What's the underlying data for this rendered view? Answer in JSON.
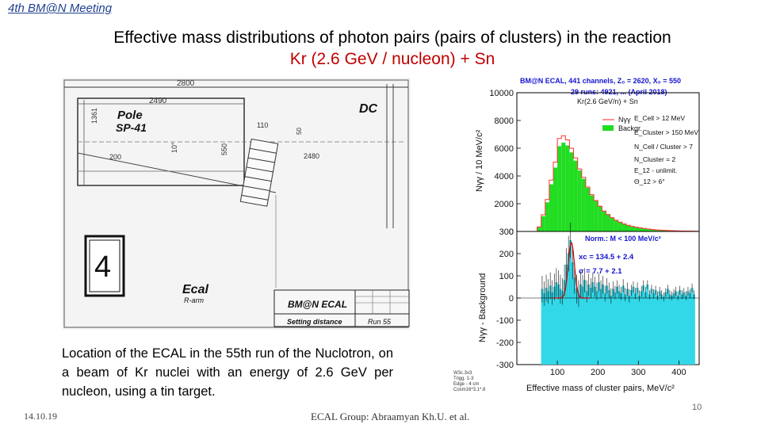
{
  "header": {
    "meeting": "4th BM@N Meeting"
  },
  "slide": {
    "title_line1": "Effective mass distributions of photon pairs (pairs of clusters) in the reaction",
    "title_line2": "Kr (2.6 GeV / nucleon) + Sn",
    "caption": "Location of the ECAL in the 55th run of the Nuclotron, on a beam of Kr nuclei with an energy of 2.6 GeV per nucleon, using a tin target."
  },
  "drawing": {
    "dims": {
      "d2800": "2800",
      "d2490": "2490",
      "d1361": "1361",
      "d110": "110",
      "d50": "50",
      "d10deg": "10°",
      "d550": "550",
      "d200": "200",
      "d2480": "2480"
    },
    "pole_label": "Pole",
    "pole_sub": "SP-41",
    "dc_label": "DC",
    "ecal_label": "Ecal",
    "ecal_sub": "R-arm",
    "frame_number": "4",
    "stamp_title": "BM@N ECAL",
    "stamp_setting": "Setting distance",
    "stamp_run": "Run 55"
  },
  "chart_data": [
    {
      "type": "bar",
      "panel": "top",
      "header_line1": "BM@N ECAL, 441 channels, Z₀ = 2620, X₀ = 550",
      "header_line2": "29 runs: 4921, ... (April 2018)",
      "header_line3": "Kr(2.6 GeV/n) + Sn",
      "ylabel": "Nγγ / 10 MeV/c²",
      "xlim": [
        0,
        450
      ],
      "ylim": [
        0,
        10000
      ],
      "y_ticks": [
        "0",
        "2000",
        "4000",
        "6000",
        "8000",
        "10000"
      ],
      "legend": [
        {
          "name": "Nγγ",
          "color": "#ff4444"
        },
        {
          "name": "Backgr.",
          "color": "#22dd22"
        }
      ],
      "cuts": [
        "E_Cell > 12 MeV",
        "E_Cluster > 150 MeV",
        "N_Cell / Cluster > 7",
        "N_Cluster = 2",
        "E_12 - unlimit.",
        "Θ_12 > 6°"
      ],
      "x": [
        45,
        55,
        65,
        75,
        85,
        95,
        105,
        115,
        125,
        135,
        145,
        155,
        165,
        175,
        185,
        195,
        205,
        215,
        225,
        235,
        245,
        255,
        265,
        275,
        285,
        295,
        305,
        315,
        325,
        335,
        345,
        355,
        365,
        375,
        385,
        395,
        405,
        415,
        425,
        435,
        445
      ],
      "values": [
        0,
        300,
        1100,
        2100,
        3400,
        4600,
        6150,
        6400,
        6200,
        5700,
        5100,
        4400,
        3800,
        3150,
        2600,
        2200,
        1800,
        1450,
        1200,
        980,
        800,
        660,
        540,
        440,
        360,
        300,
        250,
        210,
        170,
        140,
        115,
        95,
        80,
        65,
        55,
        45,
        38,
        30,
        25,
        20,
        15
      ],
      "series": [
        {
          "name": "Nγγ",
          "values": [
            0,
            320,
            1200,
            2300,
            3700,
            5000,
            6700,
            6900,
            6600,
            6000,
            5300,
            4500,
            3900,
            3200,
            2650,
            2230,
            1820,
            1470,
            1220,
            990,
            810,
            670,
            545,
            445,
            365,
            305,
            255,
            212,
            172,
            142,
            117,
            96,
            81,
            66,
            56,
            46,
            39,
            31,
            26,
            21,
            16
          ]
        },
        {
          "name": "Backgr.",
          "values": [
            0,
            300,
            1100,
            2100,
            3400,
            4600,
            6150,
            6400,
            6200,
            5700,
            5100,
            4400,
            3800,
            3150,
            2600,
            2200,
            1800,
            1450,
            1200,
            980,
            800,
            660,
            540,
            440,
            360,
            300,
            250,
            210,
            170,
            140,
            115,
            95,
            80,
            65,
            55,
            45,
            38,
            30,
            25,
            20,
            15
          ]
        }
      ]
    },
    {
      "type": "bar",
      "panel": "bottom",
      "norm_label": "Norm.: M < 100 MeV/c²",
      "fit_xc": "xc = 134.5 + 2.4",
      "fit_sigma": "σ = 7.7 + 2.1",
      "ylabel": "Nγγ - Background",
      "xlabel": "Effective mass of cluster pairs, MeV/c²",
      "xlim": [
        0,
        450
      ],
      "ylim": [
        -300,
        300
      ],
      "y_ticks": [
        "-300",
        "-200",
        "-100",
        "0",
        "100",
        "200",
        "300"
      ],
      "x_ticks": [
        "100",
        "200",
        "300",
        "400"
      ],
      "gauss": {
        "mean": 134.5,
        "sigma": 7.7,
        "amplitude": 250
      },
      "bin_width": 5,
      "x": [
        62.5,
        67.5,
        72.5,
        77.5,
        82.5,
        87.5,
        92.5,
        97.5,
        102.5,
        107.5,
        112.5,
        117.5,
        122.5,
        127.5,
        132.5,
        137.5,
        142.5,
        147.5,
        152.5,
        157.5,
        162.5,
        167.5,
        172.5,
        177.5,
        182.5,
        187.5,
        192.5,
        197.5,
        202.5,
        207.5,
        212.5,
        217.5,
        222.5,
        227.5,
        232.5,
        237.5,
        242.5,
        247.5,
        252.5,
        257.5,
        262.5,
        267.5,
        272.5,
        277.5,
        282.5,
        287.5,
        292.5,
        297.5,
        302.5,
        307.5,
        312.5,
        317.5,
        322.5,
        327.5,
        332.5,
        337.5,
        342.5,
        347.5,
        352.5,
        357.5,
        362.5,
        367.5,
        372.5,
        377.5,
        382.5,
        387.5,
        392.5,
        397.5,
        402.5,
        407.5,
        412.5,
        417.5,
        422.5,
        427.5,
        432.5,
        437.5
      ],
      "values": [
        40,
        20,
        45,
        30,
        55,
        25,
        50,
        70,
        60,
        40,
        30,
        80,
        150,
        200,
        260,
        160,
        90,
        40,
        20,
        60,
        50,
        80,
        30,
        60,
        45,
        70,
        50,
        30,
        70,
        40,
        60,
        20,
        55,
        35,
        10,
        40,
        25,
        50,
        30,
        20,
        55,
        15,
        40,
        10,
        35,
        50,
        20,
        45,
        10,
        30,
        55,
        25,
        60,
        15,
        40,
        20,
        35,
        10,
        30,
        15,
        5,
        25,
        40,
        15,
        10,
        20,
        30,
        10,
        35,
        15,
        25,
        10,
        30,
        20,
        45,
        15
      ],
      "errors": [
        60,
        55,
        60,
        55,
        60,
        55,
        60,
        65,
        65,
        65,
        60,
        70,
        75,
        80,
        80,
        75,
        70,
        65,
        60,
        60,
        55,
        55,
        50,
        50,
        45,
        45,
        45,
        40,
        40,
        40,
        40,
        35,
        35,
        35,
        35,
        35,
        30,
        30,
        30,
        30,
        30,
        30,
        30,
        30,
        25,
        25,
        25,
        25,
        25,
        25,
        25,
        25,
        20,
        20,
        20,
        20,
        20,
        20,
        20,
        20,
        20,
        20,
        20,
        20,
        20,
        20,
        20,
        20,
        20,
        20,
        20,
        20,
        20,
        20,
        20,
        20
      ]
    }
  ],
  "chart_footnote": [
    "W3c.3x3",
    "Trigg. 1-3",
    "Edge - 4 cm",
    "Cosm16*3.1*.8"
  ],
  "footer": {
    "date": "14.10.19",
    "group": "ECAL Group: Abraamyan Kh.U. et al.",
    "page": "10"
  }
}
